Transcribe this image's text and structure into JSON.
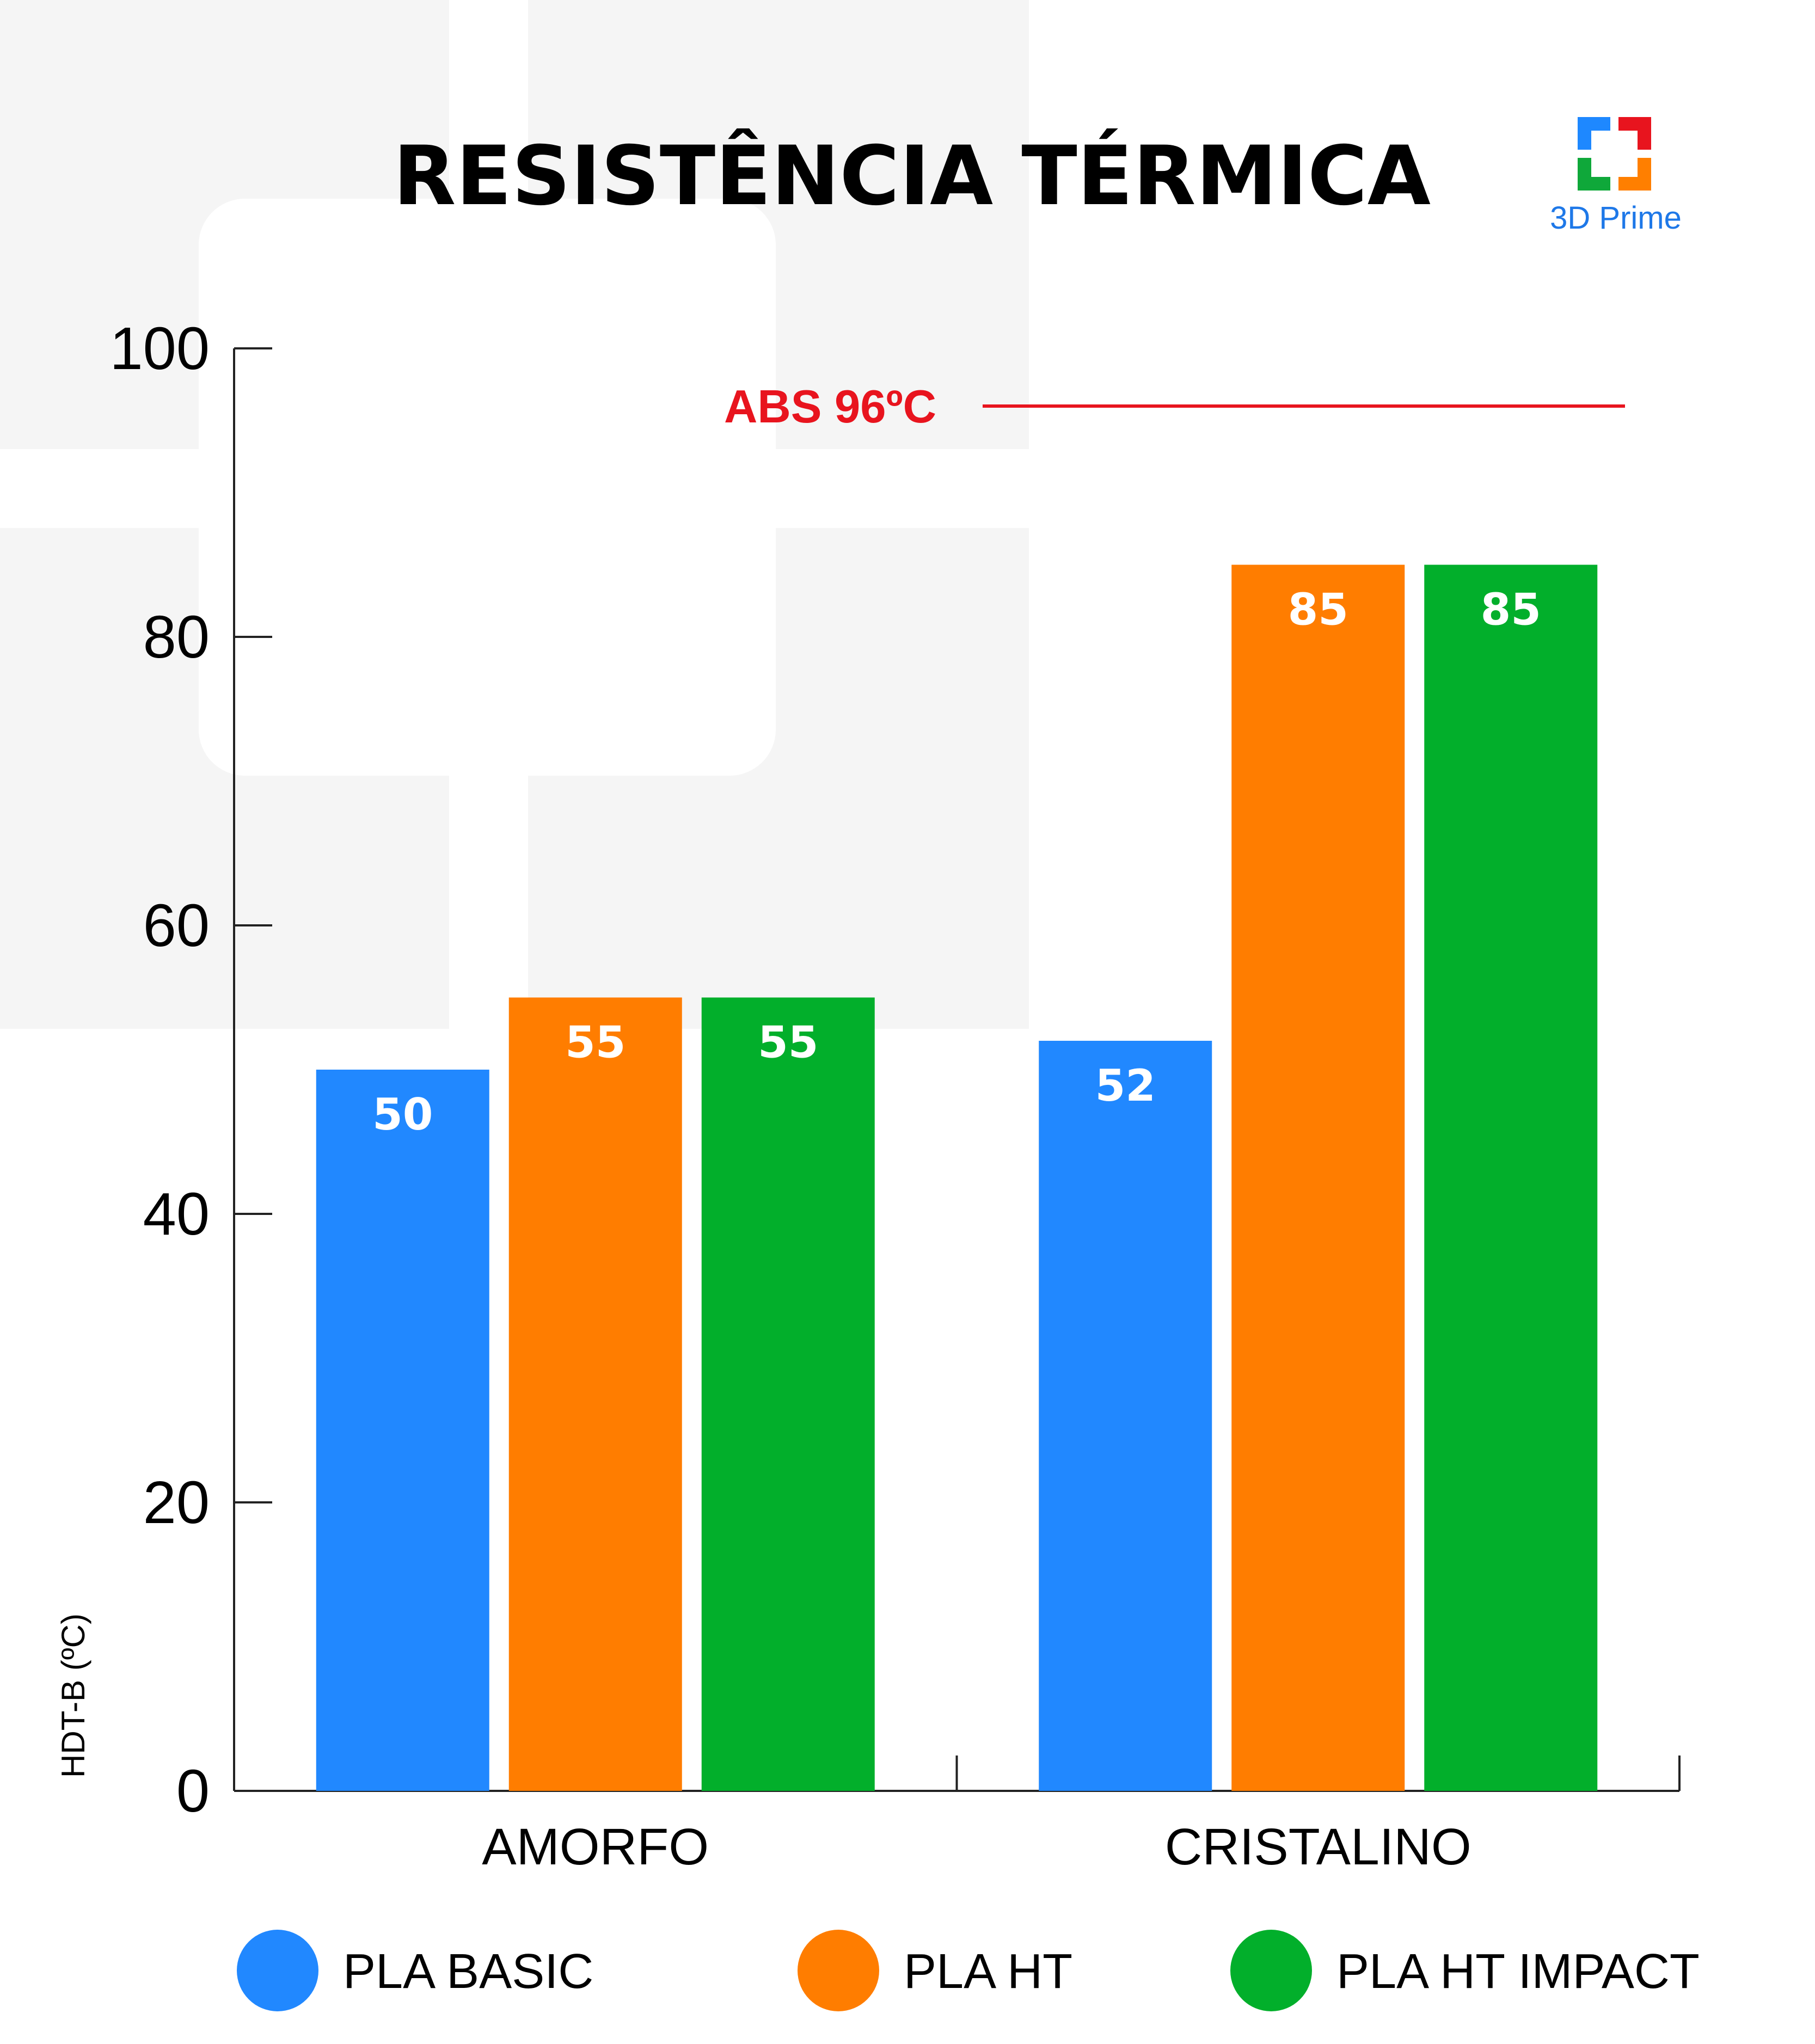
{
  "title": "RESISTÊNCIA TÉRMICA",
  "logo": {
    "text": "3D Prime",
    "colors": {
      "top": "#1E88FF",
      "right": "#E8141E",
      "bottom": "#0FA83A",
      "left_bottom": "#FF7F00"
    }
  },
  "colors": {
    "PLA BASIC": "#2188FF",
    "PLA HT": "#FF7D00",
    "PLA HT IMPACT": "#02AF2B",
    "reference": "#E8141E",
    "axis": "#222222",
    "background_shapes": "#F5F5F5"
  },
  "chart_data": {
    "type": "bar",
    "title": "RESISTÊNCIA TÉRMICA",
    "xlabel": "",
    "ylabel": "HDT-B (ºC)",
    "ylim": [
      0,
      100
    ],
    "yticks": [
      0,
      20,
      40,
      60,
      80,
      100
    ],
    "ytick_labels": [
      "0",
      "20",
      "40",
      "60",
      "80",
      "100"
    ],
    "categories": [
      "AMORFO",
      "CRISTALINO"
    ],
    "series": [
      {
        "name": "PLA BASIC",
        "values": [
          50,
          52
        ]
      },
      {
        "name": "PLA HT",
        "values": [
          55,
          85
        ]
      },
      {
        "name": "PLA HT IMPACT",
        "values": [
          55,
          85
        ]
      }
    ],
    "data_labels": [
      [
        "50",
        "52"
      ],
      [
        "55",
        "85"
      ],
      [
        "55",
        "85"
      ]
    ],
    "reference_line": {
      "label": "ABS 96ºC",
      "value": 96
    },
    "legend": {
      "placement": "bottom",
      "entries": [
        "PLA BASIC",
        "PLA HT",
        "PLA HT IMPACT"
      ]
    },
    "grid": false
  }
}
